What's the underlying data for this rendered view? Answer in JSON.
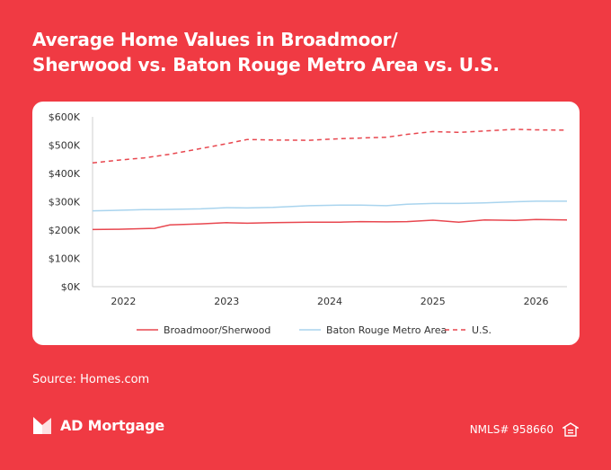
{
  "title": {
    "line1": "Average Home Values  in Broadmoor/",
    "line2": "Sherwood vs. Baton Rouge Metro Area vs. U.S."
  },
  "source": "Source: Homes.com",
  "brand": {
    "name": "AD Mortgage",
    "logo_icon": "ad-mortgage-logo-icon"
  },
  "nmls": "NMLS# 958660",
  "eho_icon": "equal-housing-opportunity-icon",
  "colors": {
    "background": "#f03a43",
    "series_broadmoor": "#e8474f",
    "series_metro": "#a9d4ee",
    "series_us": "#e8474f"
  },
  "chart_data": {
    "type": "line",
    "xlabel": "",
    "ylabel": "",
    "x_ticks": [
      "2022",
      "2023",
      "2024",
      "2025",
      "2026"
    ],
    "xlim": [
      2021.7,
      2026.3
    ],
    "ylim": [
      0,
      600000
    ],
    "y_ticks": [
      "$0K",
      "$100K",
      "$200K",
      "$300K",
      "$400K",
      "$500K",
      "$600K"
    ],
    "legend_position": "bottom",
    "grid": false,
    "x": [
      2021.7,
      2021.95,
      2022.2,
      2022.3,
      2022.45,
      2022.75,
      2023.0,
      2023.2,
      2023.45,
      2023.8,
      2024.1,
      2024.3,
      2024.55,
      2024.75,
      2025.0,
      2025.25,
      2025.5,
      2025.8,
      2026.0,
      2026.3
    ],
    "series": [
      {
        "name": "Broadmoor/Sherwood",
        "style": "solid",
        "values": [
          202000,
          203000,
          205000,
          206000,
          218000,
          222000,
          226000,
          224000,
          226000,
          228000,
          228000,
          230000,
          229000,
          230000,
          235000,
          228000,
          236000,
          234000,
          237000,
          236000
        ]
      },
      {
        "name": "Baton Rouge Metro Area",
        "style": "solid",
        "values": [
          268000,
          270000,
          272000,
          272000,
          273000,
          275000,
          279000,
          278000,
          280000,
          286000,
          288000,
          288000,
          286000,
          291000,
          294000,
          294000,
          296000,
          300000,
          302000,
          302000
        ]
      },
      {
        "name": "U.S.",
        "style": "dashed",
        "values": [
          437000,
          447000,
          455000,
          460000,
          468000,
          488000,
          505000,
          520000,
          518000,
          517000,
          523000,
          525000,
          528000,
          538000,
          548000,
          545000,
          550000,
          556000,
          554000,
          553000
        ]
      }
    ]
  }
}
